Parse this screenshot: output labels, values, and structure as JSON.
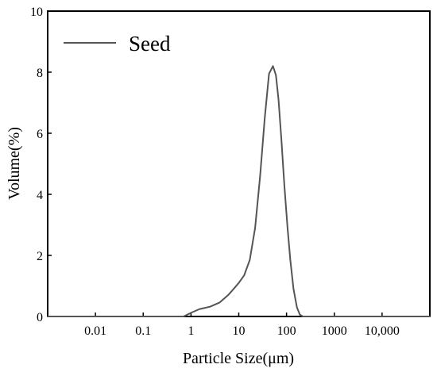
{
  "chart_data": {
    "type": "line",
    "title": "",
    "xlabel": "Particle Size(μm)",
    "ylabel": "Volume(%)",
    "x_scale": "log",
    "xlim": [
      0.001,
      100000
    ],
    "ylim": [
      0,
      10
    ],
    "x_ticks": [
      {
        "value": 0.01,
        "label": "0.01"
      },
      {
        "value": 0.1,
        "label": "0.1"
      },
      {
        "value": 1,
        "label": "1"
      },
      {
        "value": 10,
        "label": "10"
      },
      {
        "value": 100,
        "label": "100"
      },
      {
        "value": 1000,
        "label": "1000"
      },
      {
        "value": 10000,
        "label": "10,000"
      }
    ],
    "y_ticks": [
      {
        "value": 0,
        "label": "0"
      },
      {
        "value": 2,
        "label": "2"
      },
      {
        "value": 4,
        "label": "4"
      },
      {
        "value": 6,
        "label": "6"
      },
      {
        "value": 8,
        "label": "8"
      },
      {
        "value": 10,
        "label": "10"
      }
    ],
    "grid": false,
    "legend_position": "top-left",
    "series": [
      {
        "name": "Seed",
        "color": "#555555",
        "x": [
          0.001,
          0.7,
          1,
          1.5,
          2.5,
          4,
          6,
          8,
          10,
          13,
          17,
          22,
          28,
          35,
          43,
          52,
          60,
          68,
          78,
          90,
          105,
          120,
          140,
          165,
          190,
          220,
          260,
          100000
        ],
        "y": [
          0,
          0,
          0.12,
          0.24,
          0.32,
          0.46,
          0.7,
          0.92,
          1.1,
          1.35,
          1.85,
          2.9,
          4.6,
          6.5,
          7.95,
          8.2,
          7.9,
          7.1,
          5.8,
          4.3,
          2.9,
          1.85,
          0.9,
          0.3,
          0.06,
          0,
          0,
          0
        ]
      }
    ]
  }
}
